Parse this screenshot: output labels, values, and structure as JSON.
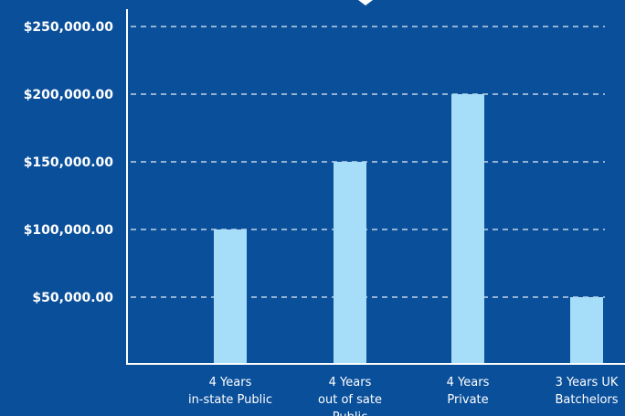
{
  "chart_data": {
    "type": "bar",
    "categories": [
      [
        "4 Years",
        "in-state Public"
      ],
      [
        "4 Years",
        "out of sate",
        "Public"
      ],
      [
        "4 Years",
        "Private"
      ],
      [
        "3 Years UK",
        "Batchelors"
      ]
    ],
    "values": [
      100000,
      150000,
      200000,
      50000
    ],
    "y_ticks": [
      {
        "value": 50000,
        "label": "$50,000.00"
      },
      {
        "value": 100000,
        "label": "$100,000.00"
      },
      {
        "value": 150000,
        "label": "$150,000.00"
      },
      {
        "value": 200000,
        "label": "$200,000.00"
      },
      {
        "value": 250000,
        "label": "$250,000.00"
      }
    ],
    "ylim": [
      0,
      250000
    ],
    "grid": true,
    "title": "",
    "xlabel": "",
    "ylabel": ""
  },
  "colors": {
    "background": "#0a4f9a",
    "bar": "#a6ddf9",
    "axis": "#ffffff",
    "grid": "#ffffff",
    "text": "#ffffff"
  }
}
